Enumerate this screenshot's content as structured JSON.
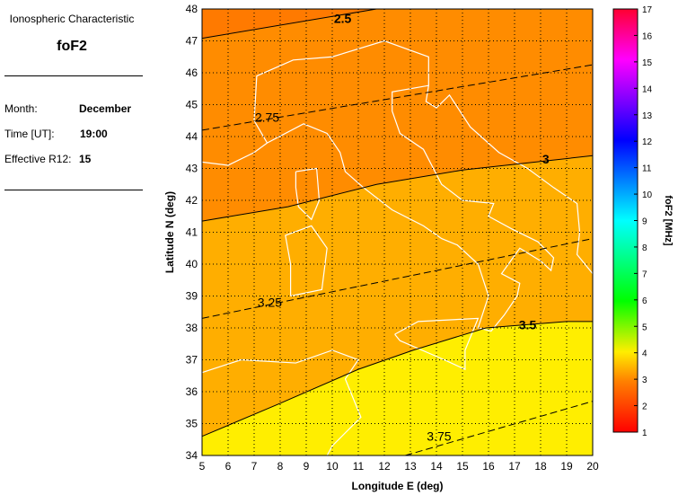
{
  "info": {
    "heading": "Ionospheric Characteristic",
    "param": "foF2",
    "month_label": "Month:",
    "month": "December",
    "time_label": "Time [UT]:",
    "time": "19:00",
    "r12_label": "Effective R12:",
    "r12": "15"
  },
  "chart_data": {
    "type": "contour",
    "xlabel": "Longitude E (deg)",
    "ylabel": "Latitude N (deg)",
    "xlim": [
      5,
      20
    ],
    "ylim": [
      34,
      48
    ],
    "grid": true,
    "xticks": [
      5,
      6,
      7,
      8,
      9,
      10,
      11,
      12,
      13,
      14,
      15,
      16,
      17,
      18,
      19,
      20
    ],
    "yticks": [
      34,
      35,
      36,
      37,
      38,
      39,
      40,
      41,
      42,
      43,
      44,
      45,
      46,
      47,
      48
    ],
    "contours": [
      {
        "level": "2.5",
        "style": "solid",
        "points": [
          [
            5,
            47.08
          ],
          [
            11.7,
            48
          ]
        ],
        "label_at": [
          10.4,
          47.7
        ]
      },
      {
        "level": "2.75",
        "style": "dashed",
        "points": [
          [
            5,
            44.2
          ],
          [
            20,
            46.25
          ]
        ],
        "label_at": [
          7.5,
          44.6
        ]
      },
      {
        "level": "3",
        "style": "solid",
        "points": [
          [
            5,
            41.35
          ],
          [
            8.3,
            41.8
          ],
          [
            11.7,
            42.5
          ],
          [
            15,
            42.95
          ],
          [
            20,
            43.4
          ]
        ],
        "label_at": [
          18.2,
          43.3
        ]
      },
      {
        "level": "3.25",
        "style": "dashed",
        "points": [
          [
            5,
            38.3
          ],
          [
            20,
            40.8
          ]
        ],
        "label_at": [
          7.6,
          38.8
        ]
      },
      {
        "level": "3.5",
        "style": "solid",
        "points": [
          [
            5,
            34.6
          ],
          [
            7.9,
            35.6
          ],
          [
            11,
            36.7
          ],
          [
            13.1,
            37.3
          ],
          [
            15.9,
            38.0
          ],
          [
            19,
            38.2
          ],
          [
            20,
            38.2
          ]
        ],
        "label_at": [
          17.5,
          38.1
        ]
      },
      {
        "level": "3.75",
        "style": "dashed",
        "points": [
          [
            12.8,
            34
          ],
          [
            20,
            35.7
          ]
        ],
        "label_at": [
          14.1,
          34.6
        ]
      }
    ],
    "region_colors": {
      "below_2.5": "#ff7a00",
      "2.5_3": "#ff8c00",
      "3_3.5": "#ffae00",
      "above_3.5": "#ffee00"
    },
    "colorbar": {
      "label": "foF2 [MHz]",
      "min": 1,
      "max": 17,
      "ticks": [
        1,
        2,
        3,
        4,
        5,
        6,
        7,
        8,
        9,
        10,
        11,
        12,
        13,
        14,
        15,
        16,
        17
      ],
      "stops": [
        "#ff0000",
        "#ff8000",
        "#ffff00",
        "#00ff00",
        "#00ffff",
        "#0000ff",
        "#ff00ff",
        "#ff0040"
      ]
    }
  }
}
